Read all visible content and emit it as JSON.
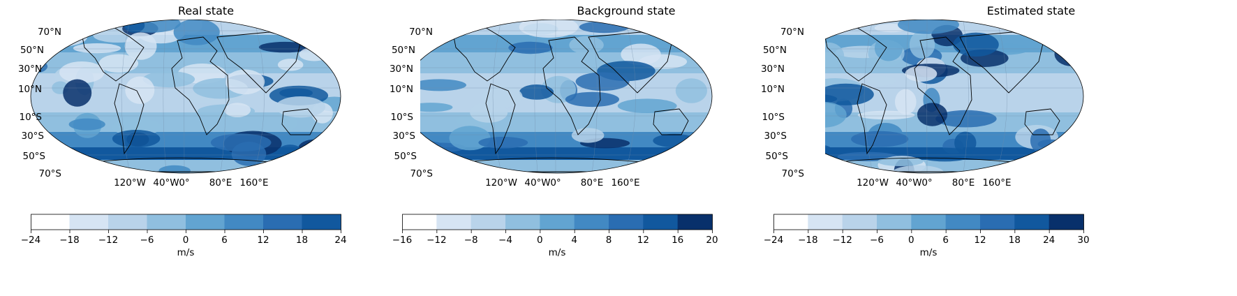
{
  "panels": [
    {
      "title": "Real state",
      "lat_labels": [
        "70°N",
        "50°N",
        "30°N",
        "10°N",
        "10°S",
        "30°S",
        "50°S",
        "70°S"
      ],
      "lon_labels": [
        "120°W",
        "40°W",
        "0°",
        "80°E",
        "160°E"
      ],
      "colorbar": {
        "ticks": [
          "−24",
          "−18",
          "−12",
          "−6",
          "0",
          "6",
          "12",
          "18",
          "24"
        ],
        "unit": "m/s",
        "colors": [
          "#ffffff",
          "#d6e4f3",
          "#b9d3ea",
          "#90bfdf",
          "#62a4d1",
          "#4289c3",
          "#2a6db2",
          "#11589e",
          "#08306b"
        ]
      }
    },
    {
      "title": "Background state",
      "lat_labels": [
        "70°N",
        "50°N",
        "30°N",
        "10°N",
        "10°S",
        "30°S",
        "50°S",
        "70°S"
      ],
      "lon_labels": [
        "120°W",
        "40°W",
        "0°",
        "80°E",
        "160°E"
      ],
      "colorbar": {
        "ticks": [
          "−16",
          "−12",
          "−8",
          "−4",
          "0",
          "4",
          "8",
          "12",
          "16",
          "20"
        ],
        "unit": "m/s",
        "colors": [
          "#ffffff",
          "#d6e4f3",
          "#b9d3ea",
          "#90bfdf",
          "#62a4d1",
          "#4289c3",
          "#2a6db2",
          "#11589e",
          "#08306b"
        ]
      }
    },
    {
      "title": "Estimated state",
      "lat_labels": [
        "70°N",
        "50°N",
        "30°N",
        "10°N",
        "10°S",
        "30°S",
        "50°S",
        "70°S"
      ],
      "lon_labels": [
        "120°W",
        "40°W",
        "0°",
        "80°E",
        "160°E"
      ],
      "colorbar": {
        "ticks": [
          "−24",
          "−18",
          "−12",
          "−6",
          "0",
          "6",
          "12",
          "18",
          "24",
          "30"
        ],
        "unit": "m/s",
        "colors": [
          "#ffffff",
          "#d6e4f3",
          "#b9d3ea",
          "#90bfdf",
          "#62a4d1",
          "#4289c3",
          "#2a6db2",
          "#11589e",
          "#08306b"
        ]
      }
    }
  ]
}
